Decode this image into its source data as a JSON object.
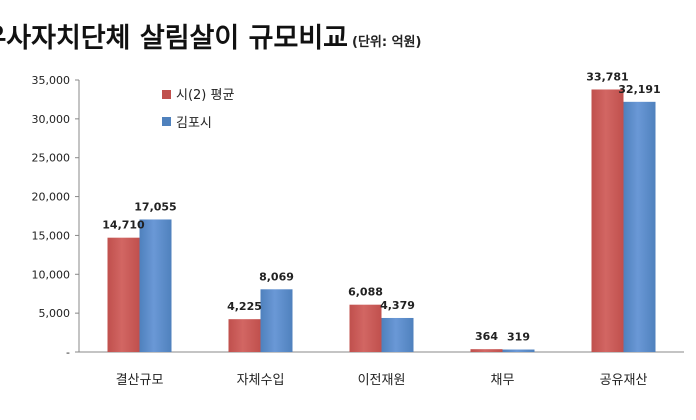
{
  "chart_data": {
    "type": "bar",
    "title": "유사자치단체 살림살이 규모비교",
    "subtitle": "(단위: 억원)",
    "categories": [
      "결산규모",
      "자체수입",
      "이전재원",
      "채무",
      "공유재산"
    ],
    "series": [
      {
        "name": "시(2) 평균",
        "values": [
          14710,
          4225,
          6088,
          364,
          33781
        ],
        "labels": [
          "14,710",
          "4,225",
          "6,088",
          "364",
          "33,781"
        ],
        "color": "#C0504D"
      },
      {
        "name": "김포시",
        "values": [
          17055,
          8069,
          4379,
          319,
          32191
        ],
        "labels": [
          "17,055",
          "8,069",
          "4,379",
          "319",
          "32,191"
        ],
        "color": "#4F81BD"
      }
    ],
    "ylim": [
      0,
      35000
    ],
    "yticks": [
      0,
      5000,
      10000,
      15000,
      20000,
      25000,
      30000,
      35000
    ],
    "ytick_labels": [
      "-",
      "5,000",
      "10,000",
      "15,000",
      "20,000",
      "25,000",
      "30,000",
      "35,000"
    ],
    "xlabel": "",
    "ylabel": "",
    "grid": false,
    "legend_position": "top-left"
  }
}
